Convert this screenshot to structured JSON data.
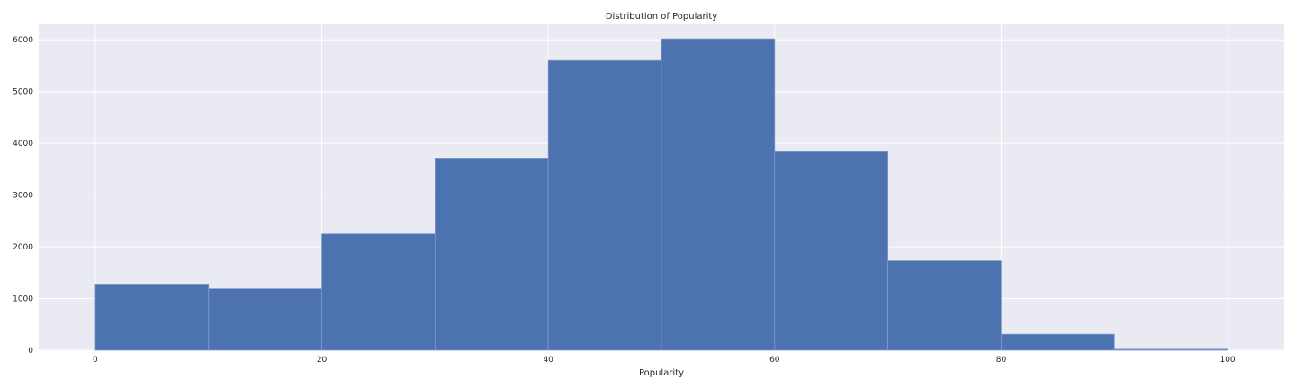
{
  "chart_data": {
    "type": "bar",
    "title": "Distribution of Popularity",
    "xlabel": "Popularity",
    "ylabel": "",
    "bin_edges": [
      0,
      10,
      20,
      30,
      40,
      50,
      60,
      70,
      80,
      90,
      100
    ],
    "values": [
      1280,
      1190,
      2250,
      3700,
      5600,
      6020,
      3840,
      1730,
      310,
      20
    ],
    "xlim": [
      -5,
      105
    ],
    "ylim": [
      0,
      6300
    ],
    "x_ticks": [
      0,
      20,
      40,
      60,
      80,
      100
    ],
    "y_ticks": [
      0,
      1000,
      2000,
      3000,
      4000,
      5000,
      6000
    ],
    "grid": true,
    "bar_color": "#4c72b0",
    "bar_edge_color": "#7d9bcd",
    "background_color": "#eaeaf2",
    "grid_color": "#ffffff"
  }
}
